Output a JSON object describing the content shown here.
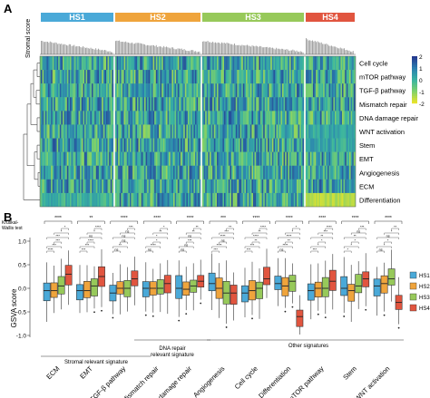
{
  "panel_a": {
    "label": "A",
    "groups": [
      {
        "name": "HS1",
        "color": "#4aa9d8"
      },
      {
        "name": "HS2",
        "color": "#efa43c"
      },
      {
        "name": "HS3",
        "color": "#97c95a"
      },
      {
        "name": "HS4",
        "color": "#e1553f"
      }
    ],
    "stromal_axis_label": "Stromal score",
    "rows": [
      "Cell cycle",
      "mTOR pathway",
      "TGF-β pathway",
      "Mismatch repair",
      "DNA damage repair",
      "WNT activation",
      "Stem",
      "EMT",
      "Angiogenesis",
      "ECM",
      "Differentiation"
    ],
    "legend_ticks": [
      "2",
      "1",
      "0",
      "-1",
      "-2"
    ],
    "colorscale": [
      "#253a8f",
      "#2a7fb0",
      "#38b3a2",
      "#7cd06c",
      "#e6e32c"
    ]
  },
  "panel_b": {
    "label": "B",
    "test_label_1": "Kruskal-",
    "test_label_2": "Wallis test",
    "ylabel": "GSVA score",
    "yticks": [
      "1.0",
      "0.5",
      "0.0",
      "-0.5",
      "-1.0"
    ],
    "legend": [
      "HS1",
      "HS2",
      "HS3",
      "HS4"
    ],
    "categories": [
      "ECM",
      "EMT",
      "TGF-β pathway",
      "Mismatch repair",
      "DNA damage repair",
      "Angiogenesis",
      "Cell cycle",
      "Differentiation",
      "mTOR pathway",
      "Stem",
      "WNT activation"
    ],
    "kw_marks": [
      "****",
      "**",
      "****",
      "****",
      "****",
      "***",
      "****",
      "****",
      "****",
      "****",
      "****"
    ],
    "signature_groups": {
      "stromal": "Stromal relevant signature",
      "dna1": "DNA repair",
      "dna2": "relevant signature",
      "other": "Other signatures"
    },
    "pairwise_marks": [
      "*",
      "**",
      "***",
      "****",
      "ns"
    ]
  },
  "chart_data": {
    "type": "box",
    "categories": [
      "ECM",
      "EMT",
      "TGF-β pathway",
      "Mismatch repair",
      "DNA damage repair",
      "Angiogenesis",
      "Cell cycle",
      "Differentiation",
      "mTOR pathway",
      "Stem",
      "WNT activation"
    ],
    "ylabel": "GSVA score",
    "ylim": [
      -1.0,
      1.0
    ],
    "series": [
      {
        "name": "HS1",
        "color": "#4aa9d8",
        "medians": [
          -0.05,
          -0.05,
          -0.1,
          0.0,
          0.0,
          0.1,
          -0.1,
          0.1,
          -0.05,
          0.0,
          0.05
        ]
      },
      {
        "name": "HS2",
        "color": "#efa43c",
        "medians": [
          -0.05,
          -0.05,
          0.0,
          0.0,
          -0.02,
          0.0,
          -0.05,
          0.05,
          0.0,
          -0.05,
          0.1
        ]
      },
      {
        "name": "HS3",
        "color": "#97c95a",
        "medians": [
          0.05,
          0.05,
          0.0,
          0.0,
          0.05,
          -0.1,
          0.0,
          0.15,
          0.0,
          0.05,
          0.2
        ]
      },
      {
        "name": "HS4",
        "color": "#e1553f",
        "medians": [
          0.3,
          0.25,
          0.2,
          0.1,
          0.15,
          -0.1,
          0.2,
          -0.6,
          0.15,
          0.2,
          -0.3
        ]
      }
    ]
  }
}
